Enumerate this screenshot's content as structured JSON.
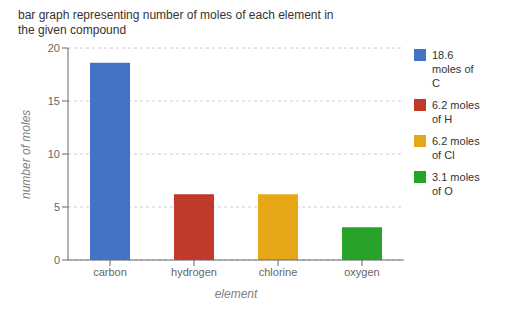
{
  "chart_data": {
    "type": "bar",
    "title": "bar graph representing number of moles of each element in\nthe given compound",
    "xlabel": "element",
    "ylabel": "number of moles",
    "categories": [
      "carbon",
      "hydrogen",
      "chlorine",
      "oxygen"
    ],
    "values": [
      18.6,
      6.2,
      6.2,
      3.1
    ],
    "colors": [
      "#4472c4",
      "#c0392b",
      "#e6a817",
      "#27a329"
    ],
    "legend_labels": [
      "18.6\nmoles of\nC",
      "6.2 moles\nof H",
      "6.2 moles\nof Cl",
      "3.1 moles\nof O"
    ],
    "legend": "right",
    "ylim": [
      0,
      20
    ],
    "yticks": [
      0,
      5,
      10,
      15,
      20
    ],
    "grid": true
  }
}
